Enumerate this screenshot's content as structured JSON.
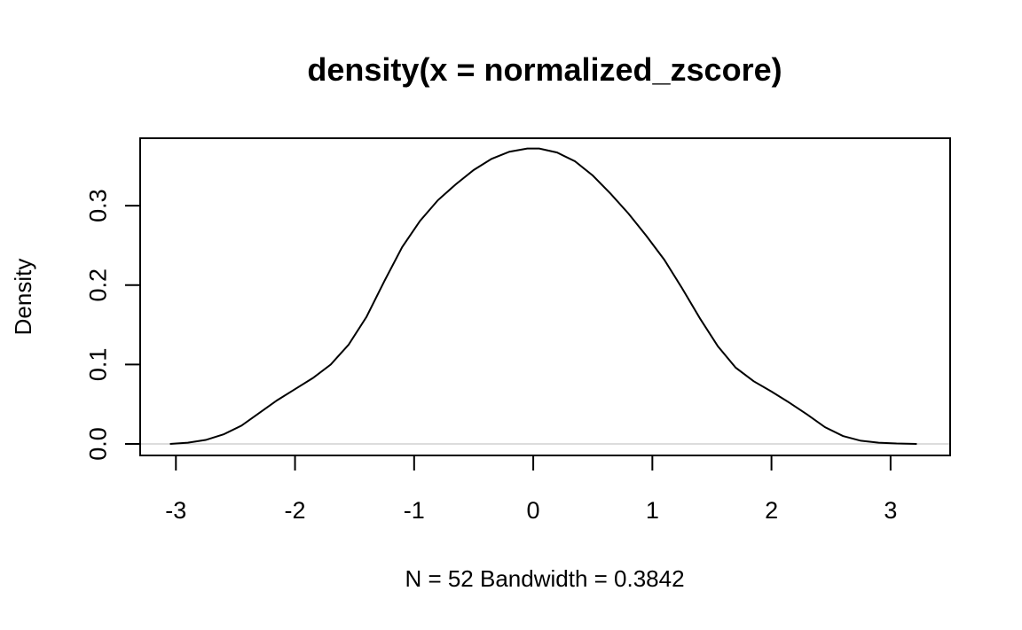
{
  "chart_data": {
    "type": "line",
    "title": "density(x = normalized_zscore)",
    "xlabel": "N = 52   Bandwidth = 0.3842",
    "ylabel": "Density",
    "xlim": [
      -3.3,
      3.5
    ],
    "ylim": [
      -0.0145,
      0.385
    ],
    "x_ticks": [
      -3,
      -2,
      -1,
      0,
      1,
      2,
      3
    ],
    "x_tick_labels": [
      "-3",
      "-2",
      "-1",
      "0",
      "1",
      "2",
      "3"
    ],
    "y_ticks": [
      0.0,
      0.1,
      0.2,
      0.3
    ],
    "y_tick_labels": [
      "0.0",
      "0.1",
      "0.2",
      "0.3"
    ],
    "zero_line": true,
    "zero_line_color": "#c8c8c8",
    "line_color": "#000000",
    "grid": false,
    "series": [
      {
        "x": [
          -3.05,
          -2.9,
          -2.75,
          -2.6,
          -2.45,
          -2.3,
          -2.15,
          -2.0,
          -1.85,
          -1.7,
          -1.55,
          -1.4,
          -1.25,
          -1.1,
          -0.95,
          -0.8,
          -0.65,
          -0.5,
          -0.35,
          -0.2,
          -0.05,
          0.05,
          0.2,
          0.35,
          0.5,
          0.65,
          0.8,
          0.95,
          1.1,
          1.25,
          1.4,
          1.55,
          1.7,
          1.85,
          2.0,
          2.15,
          2.3,
          2.45,
          2.6,
          2.75,
          2.9,
          3.05,
          3.22
        ],
        "y": [
          0.0,
          0.0015,
          0.005,
          0.012,
          0.023,
          0.039,
          0.055,
          0.069,
          0.083,
          0.1,
          0.125,
          0.16,
          0.205,
          0.248,
          0.281,
          0.307,
          0.327,
          0.345,
          0.359,
          0.368,
          0.372,
          0.372,
          0.367,
          0.356,
          0.338,
          0.315,
          0.29,
          0.262,
          0.232,
          0.196,
          0.158,
          0.123,
          0.096,
          0.079,
          0.066,
          0.052,
          0.037,
          0.021,
          0.01,
          0.004,
          0.0015,
          0.0005,
          0.0
        ]
      }
    ]
  }
}
